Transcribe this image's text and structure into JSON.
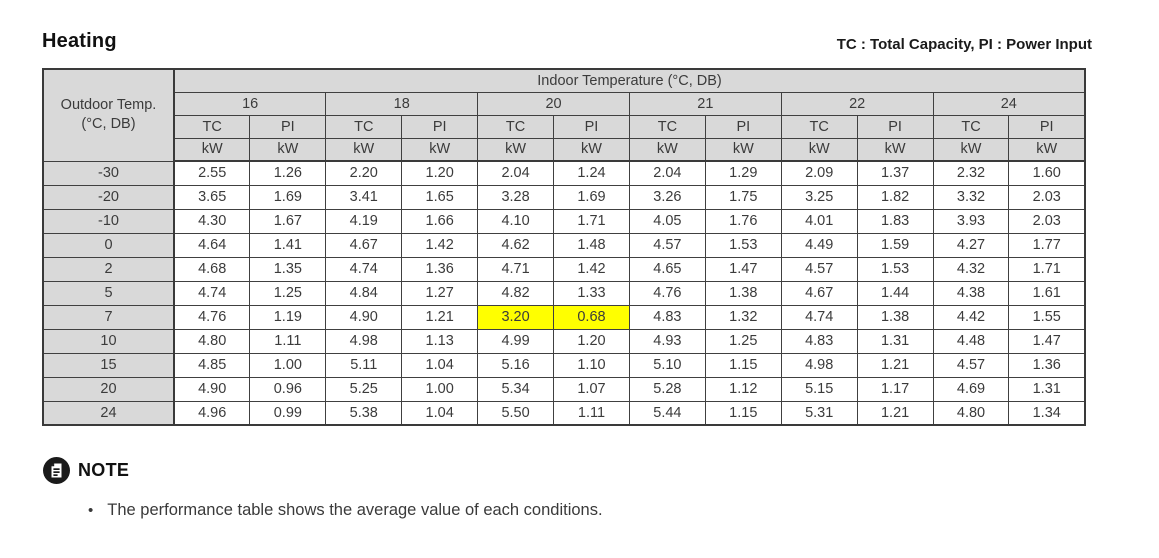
{
  "title": "Heating",
  "legend": "TC : Total Capacity,  PI : Power Input",
  "table": {
    "corner": {
      "line1": "Outdoor Temp.",
      "line2": "(°C, DB)"
    },
    "indoor_header": "Indoor Temperature (°C, DB)",
    "indoor_temps": [
      "16",
      "18",
      "20",
      "21",
      "22",
      "24"
    ],
    "col_headers": {
      "tc": "TC",
      "pi": "PI"
    },
    "unit_label": "kW",
    "rows": [
      {
        "outdoor": "-30",
        "values": [
          "2.55",
          "1.26",
          "2.20",
          "1.20",
          "2.04",
          "1.24",
          "2.04",
          "1.29",
          "2.09",
          "1.37",
          "2.32",
          "1.60"
        ]
      },
      {
        "outdoor": "-20",
        "values": [
          "3.65",
          "1.69",
          "3.41",
          "1.65",
          "3.28",
          "1.69",
          "3.26",
          "1.75",
          "3.25",
          "1.82",
          "3.32",
          "2.03"
        ]
      },
      {
        "outdoor": "-10",
        "values": [
          "4.30",
          "1.67",
          "4.19",
          "1.66",
          "4.10",
          "1.71",
          "4.05",
          "1.76",
          "4.01",
          "1.83",
          "3.93",
          "2.03"
        ]
      },
      {
        "outdoor": "0",
        "values": [
          "4.64",
          "1.41",
          "4.67",
          "1.42",
          "4.62",
          "1.48",
          "4.57",
          "1.53",
          "4.49",
          "1.59",
          "4.27",
          "1.77"
        ]
      },
      {
        "outdoor": "2",
        "values": [
          "4.68",
          "1.35",
          "4.74",
          "1.36",
          "4.71",
          "1.42",
          "4.65",
          "1.47",
          "4.57",
          "1.53",
          "4.32",
          "1.71"
        ]
      },
      {
        "outdoor": "5",
        "values": [
          "4.74",
          "1.25",
          "4.84",
          "1.27",
          "4.82",
          "1.33",
          "4.76",
          "1.38",
          "4.67",
          "1.44",
          "4.38",
          "1.61"
        ]
      },
      {
        "outdoor": "7",
        "values": [
          "4.76",
          "1.19",
          "4.90",
          "1.21",
          "3.20",
          "0.68",
          "4.83",
          "1.32",
          "4.74",
          "1.38",
          "4.42",
          "1.55"
        ]
      },
      {
        "outdoor": "10",
        "values": [
          "4.80",
          "1.11",
          "4.98",
          "1.13",
          "4.99",
          "1.20",
          "4.93",
          "1.25",
          "4.83",
          "1.31",
          "4.48",
          "1.47"
        ]
      },
      {
        "outdoor": "15",
        "values": [
          "4.85",
          "1.00",
          "5.11",
          "1.04",
          "5.16",
          "1.10",
          "5.10",
          "1.15",
          "4.98",
          "1.21",
          "4.57",
          "1.36"
        ]
      },
      {
        "outdoor": "20",
        "values": [
          "4.90",
          "0.96",
          "5.25",
          "1.00",
          "5.34",
          "1.07",
          "5.28",
          "1.12",
          "5.15",
          "1.17",
          "4.69",
          "1.31"
        ]
      },
      {
        "outdoor": "24",
        "values": [
          "4.96",
          "0.99",
          "5.38",
          "1.04",
          "5.50",
          "1.11",
          "5.44",
          "1.15",
          "5.31",
          "1.21",
          "4.80",
          "1.34"
        ]
      }
    ],
    "highlight": {
      "row_index": 6,
      "col_indices": [
        4,
        5
      ],
      "color": "#ffff00"
    }
  },
  "colors": {
    "header_bg": "#d9d9d9",
    "border": "#404040",
    "highlight": "#ffff00"
  },
  "note": {
    "label": "NOTE",
    "icon": "note-icon",
    "bullet_glyph": "•",
    "bullet": "The performance table shows the average value of each conditions."
  }
}
